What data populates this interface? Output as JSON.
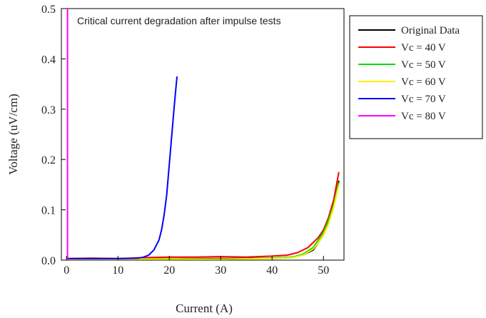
{
  "chart_data": {
    "type": "line",
    "title": "",
    "annotation": "Critical current degradation after impulse tests",
    "xlabel": "Current (A)",
    "ylabel": "Voltage (uV/cm)",
    "xlim": [
      -1,
      54
    ],
    "ylim": [
      0,
      0.5
    ],
    "xticks": [
      "0",
      "10",
      "20",
      "30",
      "40",
      "50"
    ],
    "yticks": [
      "0.0",
      "0.1",
      "0.2",
      "0.3",
      "0.4",
      "0.5"
    ],
    "grid": false,
    "legend_position": "right",
    "series": [
      {
        "name": "Original Data",
        "color": "#000000",
        "x": [
          0,
          10,
          20,
          30,
          40,
          44,
          46,
          48,
          49,
          50,
          51,
          52,
          53
        ],
        "y": [
          0.003,
          0.003,
          0.003,
          0.003,
          0.004,
          0.006,
          0.01,
          0.02,
          0.035,
          0.05,
          0.075,
          0.11,
          0.158
        ]
      },
      {
        "name": "Vc = 40 V",
        "color": "#ff0000",
        "x": [
          0,
          5,
          10,
          15,
          20,
          25,
          30,
          35,
          40,
          43,
          45,
          47,
          48,
          49,
          50,
          51,
          52,
          53
        ],
        "y": [
          0.003,
          0.004,
          0.003,
          0.005,
          0.006,
          0.006,
          0.007,
          0.006,
          0.008,
          0.01,
          0.015,
          0.025,
          0.035,
          0.045,
          0.06,
          0.085,
          0.12,
          0.175
        ]
      },
      {
        "name": "Vc = 50 V",
        "color": "#00e000",
        "x": [
          0,
          10,
          20,
          30,
          40,
          44,
          46,
          48,
          49,
          50,
          51,
          52,
          53
        ],
        "y": [
          0.002,
          0.002,
          0.003,
          0.002,
          0.004,
          0.006,
          0.012,
          0.025,
          0.04,
          0.055,
          0.08,
          0.11,
          0.155
        ]
      },
      {
        "name": "Vc = 60 V",
        "color": "#ffee00",
        "x": [
          0,
          10,
          20,
          30,
          40,
          44,
          46,
          48,
          49,
          50,
          51,
          52,
          53
        ],
        "y": [
          0.002,
          0.002,
          0.002,
          0.002,
          0.003,
          0.005,
          0.01,
          0.022,
          0.035,
          0.05,
          0.072,
          0.105,
          0.15
        ]
      },
      {
        "name": "Vc = 70 V",
        "color": "#0000ff",
        "x": [
          0,
          5,
          10,
          14,
          15,
          16,
          17,
          18,
          18.5,
          19,
          19.5,
          20,
          20.5,
          21,
          21.5
        ],
        "y": [
          0.003,
          0.003,
          0.003,
          0.004,
          0.006,
          0.01,
          0.02,
          0.04,
          0.06,
          0.09,
          0.13,
          0.19,
          0.25,
          0.31,
          0.365
        ]
      },
      {
        "name": "Vc = 80 V",
        "color": "#ff00ff",
        "x": [
          0.2,
          0.2
        ],
        "y": [
          0.0,
          0.5
        ]
      }
    ]
  }
}
